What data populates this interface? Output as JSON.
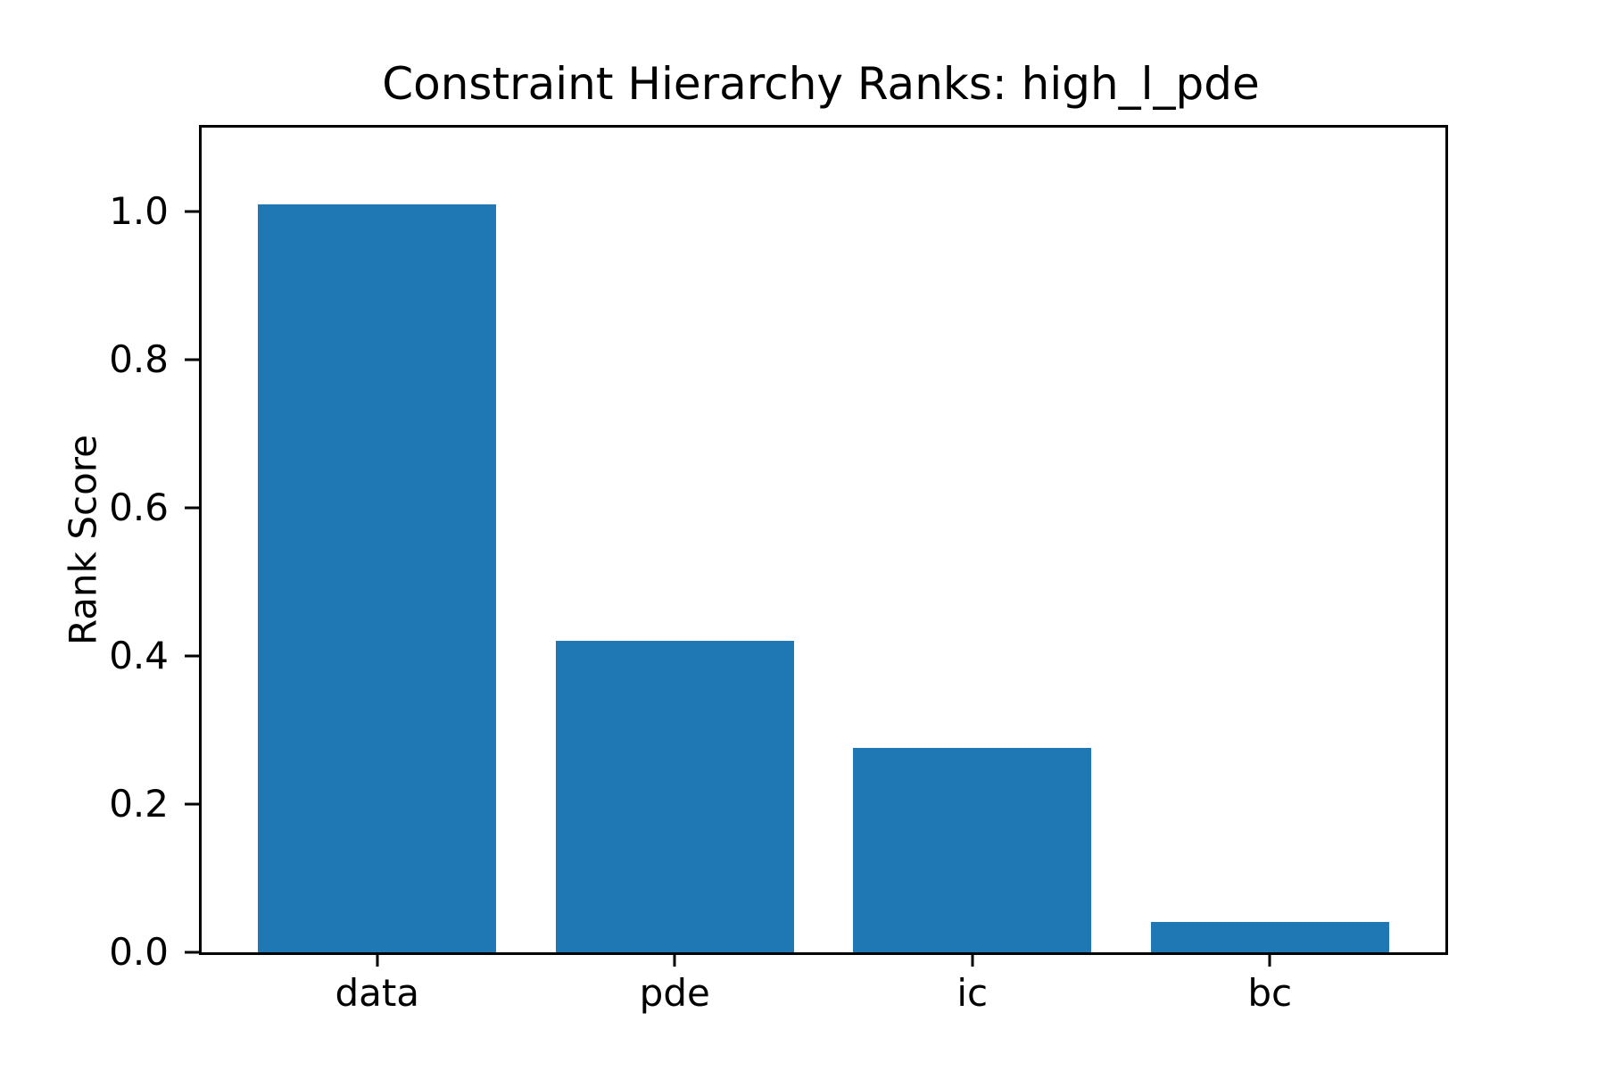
{
  "chart_data": {
    "type": "bar",
    "title": "Constraint Hierarchy Ranks: high_l_pde",
    "xlabel": "",
    "ylabel": "Rank Score",
    "categories": [
      "data",
      "pde",
      "ic",
      "bc"
    ],
    "values": [
      1.01,
      0.42,
      0.276,
      0.041
    ],
    "yticks": [
      0.0,
      0.2,
      0.4,
      0.6,
      0.8,
      1.0
    ],
    "ytick_labels": [
      "0.0",
      "0.2",
      "0.4",
      "0.6",
      "0.8",
      "1.0"
    ],
    "ylim": [
      0,
      1.113
    ],
    "grid": false,
    "legend": "none",
    "colors": {
      "bar": "#1f77b4",
      "axis": "#000000",
      "background": "#ffffff"
    }
  }
}
